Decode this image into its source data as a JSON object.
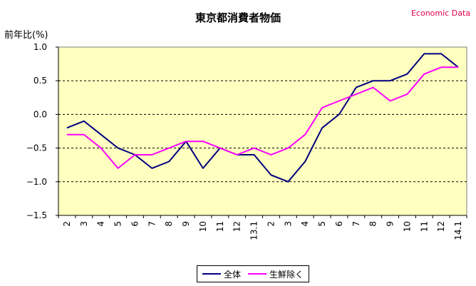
{
  "chart_data": {
    "type": "line",
    "title": "東京都消費者物価",
    "source_label": "Economic Data",
    "ylabel": "前年比(%)",
    "xlabel": "",
    "categories": [
      "2",
      "3",
      "4",
      "5",
      "6",
      "7",
      "8",
      "9",
      "10",
      "11",
      "12",
      "13.1",
      "2",
      "3",
      "4",
      "5",
      "6",
      "7",
      "8",
      "9",
      "10",
      "11",
      "12",
      "14.1"
    ],
    "series": [
      {
        "name": "全体",
        "color": "#000080",
        "values": [
          -0.2,
          -0.1,
          -0.3,
          -0.5,
          -0.6,
          -0.8,
          -0.7,
          -0.4,
          -0.8,
          -0.5,
          -0.6,
          -0.6,
          -0.9,
          -1.0,
          -0.7,
          -0.2,
          0.0,
          0.4,
          0.5,
          0.5,
          0.6,
          0.9,
          0.9,
          0.7
        ]
      },
      {
        "name": "生鮮除く",
        "color": "#ff00ff",
        "values": [
          -0.3,
          -0.3,
          -0.5,
          -0.8,
          -0.6,
          -0.6,
          -0.5,
          -0.4,
          -0.4,
          -0.5,
          -0.6,
          -0.5,
          -0.6,
          -0.5,
          -0.3,
          0.1,
          0.2,
          0.3,
          0.4,
          0.2,
          0.3,
          0.6,
          0.7,
          0.7
        ]
      }
    ],
    "ylim": [
      -1.5,
      1.0
    ],
    "yticks": [
      1.0,
      0.5,
      0.0,
      -0.5,
      -1.0,
      -1.5
    ],
    "ytick_labels": [
      "1.0",
      "0.5",
      "0.0",
      "-0.5",
      "-1.0",
      "-1.5"
    ],
    "grid": "horizontal-dashed",
    "plot_background": "#ffffc0",
    "legend_position": "bottom-center"
  }
}
